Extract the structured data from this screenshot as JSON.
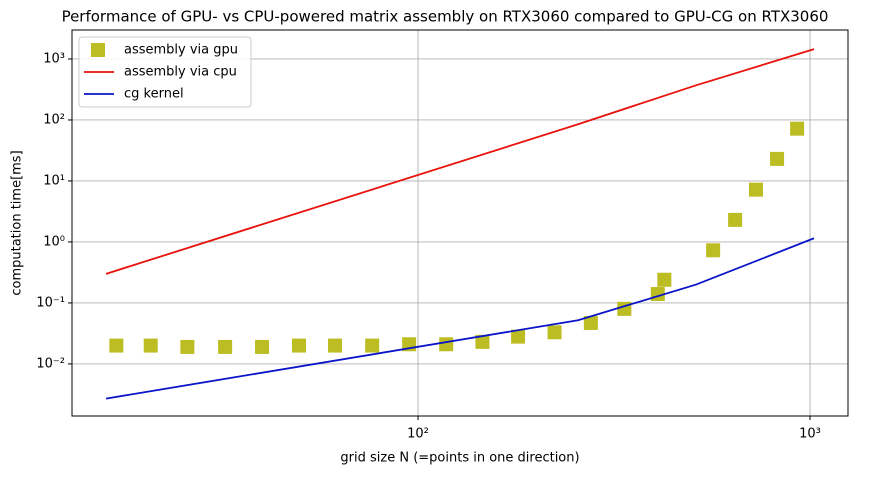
{
  "chart_data": {
    "type": "line",
    "title": "Performance of GPU- vs CPU-powered matrix assembly on RTX3060 compared to GPU-CG on RTX3060",
    "x_label": "grid size N (=points in one direction)",
    "y_label": "computation time[ms]",
    "x_log": true,
    "y_log": true,
    "grid": true,
    "legend": "upper left",
    "xlim": [
      13.1,
      1250
    ],
    "ylim": [
      0.0014,
      2985
    ],
    "xticks": [
      {
        "value": 100,
        "label": "10²"
      },
      {
        "value": 1000,
        "label": "10³"
      }
    ],
    "yticks": [
      {
        "value": 0.01,
        "label": "10⁻²"
      },
      {
        "value": 0.1,
        "label": "10⁻¹"
      },
      {
        "value": 1,
        "label": "10⁰"
      },
      {
        "value": 10,
        "label": "10¹"
      },
      {
        "value": 100,
        "label": "10²"
      },
      {
        "value": 1000,
        "label": "10³"
      }
    ],
    "series": [
      {
        "name": "assembly via gpu",
        "color": "#bcbd22",
        "marker": "square",
        "x": [
          17,
          20.8,
          25.8,
          32.2,
          40,
          49.7,
          61.4,
          76.4,
          94.9,
          118,
          146,
          180,
          223,
          276,
          336,
          409,
          425,
          566,
          644,
          728,
          824,
          927
        ],
        "values": [
          0.02,
          0.02,
          0.019,
          0.019,
          0.019,
          0.02,
          0.02,
          0.02,
          0.021,
          0.021,
          0.023,
          0.028,
          0.033,
          0.047,
          0.08,
          0.14,
          0.24,
          0.73,
          2.3,
          7.2,
          23,
          72
        ]
      },
      {
        "name": "assembly via cpu",
        "color": "#e8120c",
        "x": [
          16,
          256,
          512,
          1024
        ],
        "values": [
          0.3,
          85,
          370,
          1450
        ]
      },
      {
        "name": "cg kernel",
        "color": "#0a14c8",
        "x": [
          16,
          256,
          512,
          1024
        ],
        "values": [
          0.0027,
          0.052,
          0.2,
          1.15
        ]
      }
    ]
  }
}
